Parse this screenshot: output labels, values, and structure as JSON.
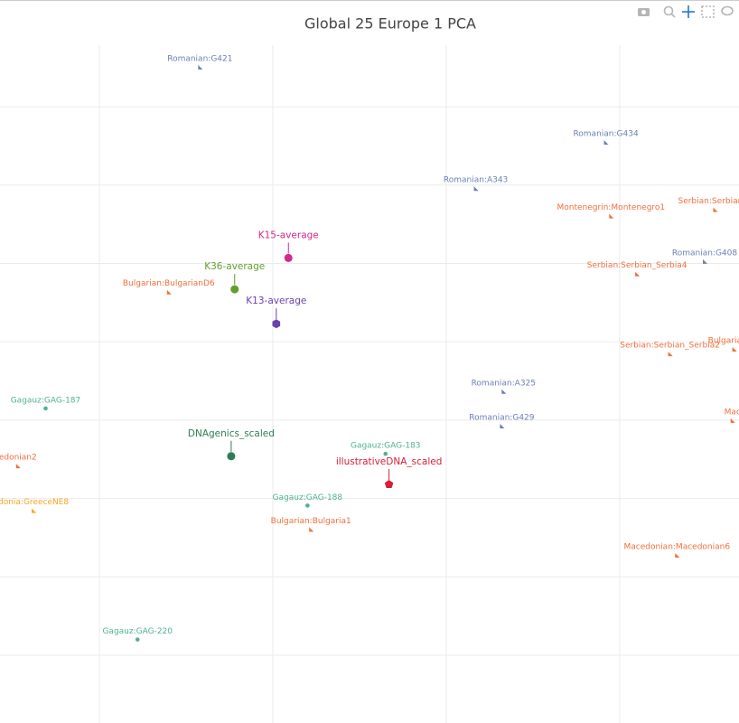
{
  "chart_data": {
    "type": "scatter",
    "title": "Global 25 Europe 1 PCA",
    "xlim": [
      -0.573,
      3.688
    ],
    "ylim": [
      -0.865,
      7.785
    ],
    "xticks": [
      0,
      1,
      2,
      3
    ],
    "yticks": [
      0,
      1,
      2,
      3,
      4,
      5,
      6,
      7
    ],
    "grid": true,
    "series": [
      {
        "color": "#6c7fb5",
        "symbol": "triangle",
        "callout": false,
        "x": [
          0.58,
          2.92,
          2.17,
          3.49,
          2.33,
          2.32
        ],
        "y": [
          7.51,
          6.55,
          5.96,
          5.03,
          3.37,
          2.93
        ],
        "text": [
          "Romanian:G421",
          "Romanian:G434",
          "Romanian:A343",
          "Romanian:G408",
          "Romanian:A325",
          "Romanian:G429"
        ]
      },
      {
        "color": "#ef6f3c",
        "symbol": "triangle",
        "callout": false,
        "x": [
          2.95,
          3.55,
          3.1,
          0.4,
          3.29,
          3.66,
          3.65,
          -0.47,
          1.22,
          3.33
        ],
        "y": [
          5.61,
          5.69,
          4.87,
          4.64,
          3.85,
          3.91,
          3.0,
          2.42,
          1.61,
          1.28
        ],
        "text": [
          "Montenegrin:Montenegro1",
          "Serbian:Serbian_S",
          "Serbian:Serbian_Serbia4",
          "Bulgarian:BulgarianD6",
          "Serbian:Serbian_Serbia2",
          "Bulgarian:Bu",
          "Mac",
          "edonian2",
          "Bulgarian:Bulgaria1",
          "Macedonian:Macedonian6"
        ]
      },
      {
        "color": "#f5a623",
        "symbol": "triangle",
        "callout": false,
        "x": [
          -0.38
        ],
        "y": [
          1.85
        ],
        "text": [
          "donia:GreeceNE8"
        ]
      },
      {
        "color": "#4db38e",
        "symbol": "circle",
        "callout": false,
        "x": [
          -0.31,
          1.65,
          1.2,
          0.22
        ],
        "y": [
          3.15,
          2.57,
          1.91,
          0.2
        ],
        "text": [
          "Gagauz:GAG-187",
          "Gagauz:GAG-183",
          "Gagauz:GAG-188",
          "Gagauz:GAG-220"
        ]
      },
      {
        "color": "#d6288f",
        "symbol": "circle",
        "callout": true,
        "x": [
          1.09
        ],
        "y": [
          5.07
        ],
        "text": [
          "K15-average"
        ]
      },
      {
        "color": "#5f9e2f",
        "symbol": "circle",
        "callout": true,
        "x": [
          0.78
        ],
        "y": [
          4.67
        ],
        "text": [
          "K36-average"
        ]
      },
      {
        "color": "#6a3fb0",
        "symbol": "hexagon",
        "callout": true,
        "x": [
          1.02
        ],
        "y": [
          4.23
        ],
        "text": [
          "K13-average"
        ]
      },
      {
        "color": "#2e7d55",
        "symbol": "circle",
        "callout": true,
        "x": [
          0.76
        ],
        "y": [
          2.54
        ],
        "text": [
          "DNAgenics_scaled"
        ]
      },
      {
        "color": "#d62035",
        "symbol": "pentagon",
        "callout": true,
        "x": [
          1.67
        ],
        "y": [
          2.18
        ],
        "text": [
          "illustrativeDNA_scaled"
        ]
      }
    ]
  }
}
